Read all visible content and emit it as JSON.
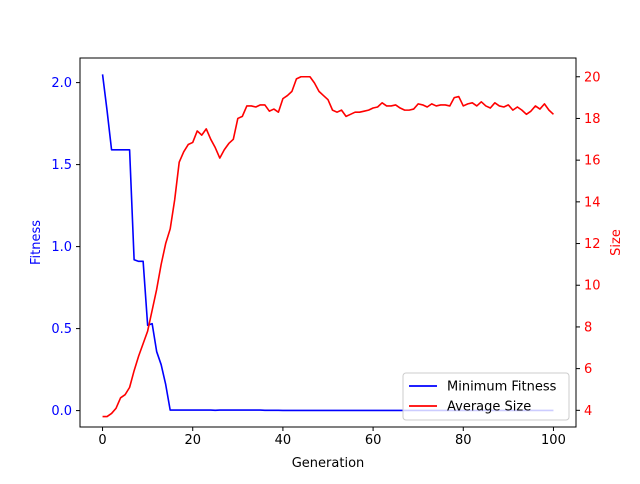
{
  "chart_data": {
    "type": "line",
    "xlabel": "Generation",
    "xlim": [
      -5,
      105
    ],
    "x_ticks": [
      0,
      20,
      40,
      60,
      80,
      100
    ],
    "x_tick_labels": [
      "0",
      "20",
      "40",
      "60",
      "80",
      "100"
    ],
    "left_axis": {
      "label": "Fitness",
      "color": "#0000ff",
      "ylim": [
        -0.1,
        2.15
      ],
      "ticks": [
        0.0,
        0.5,
        1.0,
        1.5,
        2.0
      ],
      "tick_labels": [
        "0.0",
        "0.5",
        "1.0",
        "1.5",
        "2.0"
      ]
    },
    "right_axis": {
      "label": "Size",
      "color": "#ff0000",
      "ylim": [
        3.2,
        20.9
      ],
      "ticks": [
        4,
        6,
        8,
        10,
        12,
        14,
        16,
        18,
        20
      ],
      "tick_labels": [
        "4",
        "6",
        "8",
        "10",
        "12",
        "14",
        "16",
        "18",
        "20"
      ]
    },
    "legend": {
      "placement": "lower-right"
    },
    "grid": false,
    "series": [
      {
        "name": "Minimum Fitness",
        "axis": "left",
        "color": "#0000ff",
        "x": [
          0,
          1,
          2,
          3,
          4,
          5,
          6,
          7,
          8,
          9,
          10,
          11,
          12,
          13,
          14,
          15,
          16,
          17,
          18,
          19,
          20,
          21,
          22,
          23,
          24,
          25,
          26,
          27,
          28,
          29,
          30,
          31,
          32,
          33,
          34,
          35,
          36,
          37,
          38,
          39,
          40,
          41,
          42,
          43,
          44,
          45,
          46,
          47,
          48,
          49,
          50,
          51,
          52,
          53,
          54,
          55,
          56,
          57,
          58,
          59,
          60,
          61,
          62,
          63,
          64,
          65,
          66,
          67,
          68,
          69,
          70,
          71,
          72,
          73,
          74,
          75,
          76,
          77,
          78,
          79,
          80,
          81,
          82,
          83,
          84,
          85,
          86,
          87,
          88,
          89,
          90,
          91,
          92,
          93,
          94,
          95,
          96,
          97,
          98,
          99,
          100
        ],
        "y": [
          2.05,
          1.83,
          1.59,
          1.59,
          1.59,
          1.59,
          1.59,
          0.92,
          0.91,
          0.91,
          0.52,
          0.53,
          0.36,
          0.28,
          0.16,
          0.003,
          0.003,
          0.003,
          0.003,
          0.003,
          0.003,
          0.003,
          0.003,
          0.003,
          0.003,
          0.002,
          0.003,
          0.003,
          0.003,
          0.003,
          0.003,
          0.003,
          0.003,
          0.003,
          0.003,
          0.003,
          0.002,
          0.002,
          0.002,
          0.002,
          0.001,
          0.001,
          0.001,
          0.001,
          0.001,
          0.001,
          0.001,
          0.001,
          0.001,
          0.001,
          0.001,
          0.001,
          0.001,
          0.001,
          0.001,
          0.001,
          0.001,
          0.001,
          0.001,
          0.001,
          0.001,
          0.001,
          0.001,
          0.001,
          0.001,
          0.001,
          0.001,
          0.001,
          0.001,
          0.001,
          0.001,
          0.001,
          0.001,
          0.001,
          0.001,
          0.001,
          0.001,
          0.001,
          0.001,
          0.001,
          0.001,
          0.001,
          0.001,
          0.001,
          0.001,
          0.001,
          0.001,
          0.001,
          0.001,
          0.001,
          0.001,
          0.001,
          0.001,
          0.001,
          0.001,
          0.001,
          0.001,
          0.001,
          0.001,
          0.001,
          0.001
        ]
      },
      {
        "name": "Average Size",
        "axis": "right",
        "color": "#ff0000",
        "x": [
          0,
          1,
          2,
          3,
          4,
          5,
          6,
          7,
          8,
          9,
          10,
          11,
          12,
          13,
          14,
          15,
          16,
          17,
          18,
          19,
          20,
          21,
          22,
          23,
          24,
          25,
          26,
          27,
          28,
          29,
          30,
          31,
          32,
          33,
          34,
          35,
          36,
          37,
          38,
          39,
          40,
          41,
          42,
          43,
          44,
          45,
          46,
          47,
          48,
          49,
          50,
          51,
          52,
          53,
          54,
          55,
          56,
          57,
          58,
          59,
          60,
          61,
          62,
          63,
          64,
          65,
          66,
          67,
          68,
          69,
          70,
          71,
          72,
          73,
          74,
          75,
          76,
          77,
          78,
          79,
          80,
          81,
          82,
          83,
          84,
          85,
          86,
          87,
          88,
          89,
          90,
          91,
          92,
          93,
          94,
          95,
          96,
          97,
          98,
          99,
          100
        ],
        "y": [
          3.7,
          3.7,
          3.85,
          4.1,
          4.6,
          4.75,
          5.1,
          5.9,
          6.6,
          7.2,
          7.8,
          8.8,
          9.8,
          11.0,
          12.0,
          12.7,
          14.1,
          15.9,
          16.4,
          16.75,
          16.85,
          17.4,
          17.2,
          17.5,
          17.0,
          16.6,
          16.1,
          16.5,
          16.8,
          17.0,
          18.0,
          18.1,
          18.6,
          18.6,
          18.55,
          18.65,
          18.65,
          18.35,
          18.45,
          18.3,
          18.95,
          19.1,
          19.3,
          19.9,
          20.0,
          20.0,
          20.0,
          19.7,
          19.3,
          19.1,
          18.9,
          18.4,
          18.3,
          18.4,
          18.1,
          18.2,
          18.3,
          18.3,
          18.35,
          18.4,
          18.5,
          18.55,
          18.75,
          18.6,
          18.6,
          18.65,
          18.5,
          18.4,
          18.4,
          18.45,
          18.7,
          18.65,
          18.55,
          18.7,
          18.6,
          18.65,
          18.65,
          18.6,
          19.0,
          19.05,
          18.6,
          18.7,
          18.75,
          18.6,
          18.8,
          18.6,
          18.5,
          18.75,
          18.6,
          18.55,
          18.65,
          18.4,
          18.55,
          18.4,
          18.2,
          18.35,
          18.6,
          18.45,
          18.7,
          18.4,
          18.2
        ]
      }
    ]
  }
}
